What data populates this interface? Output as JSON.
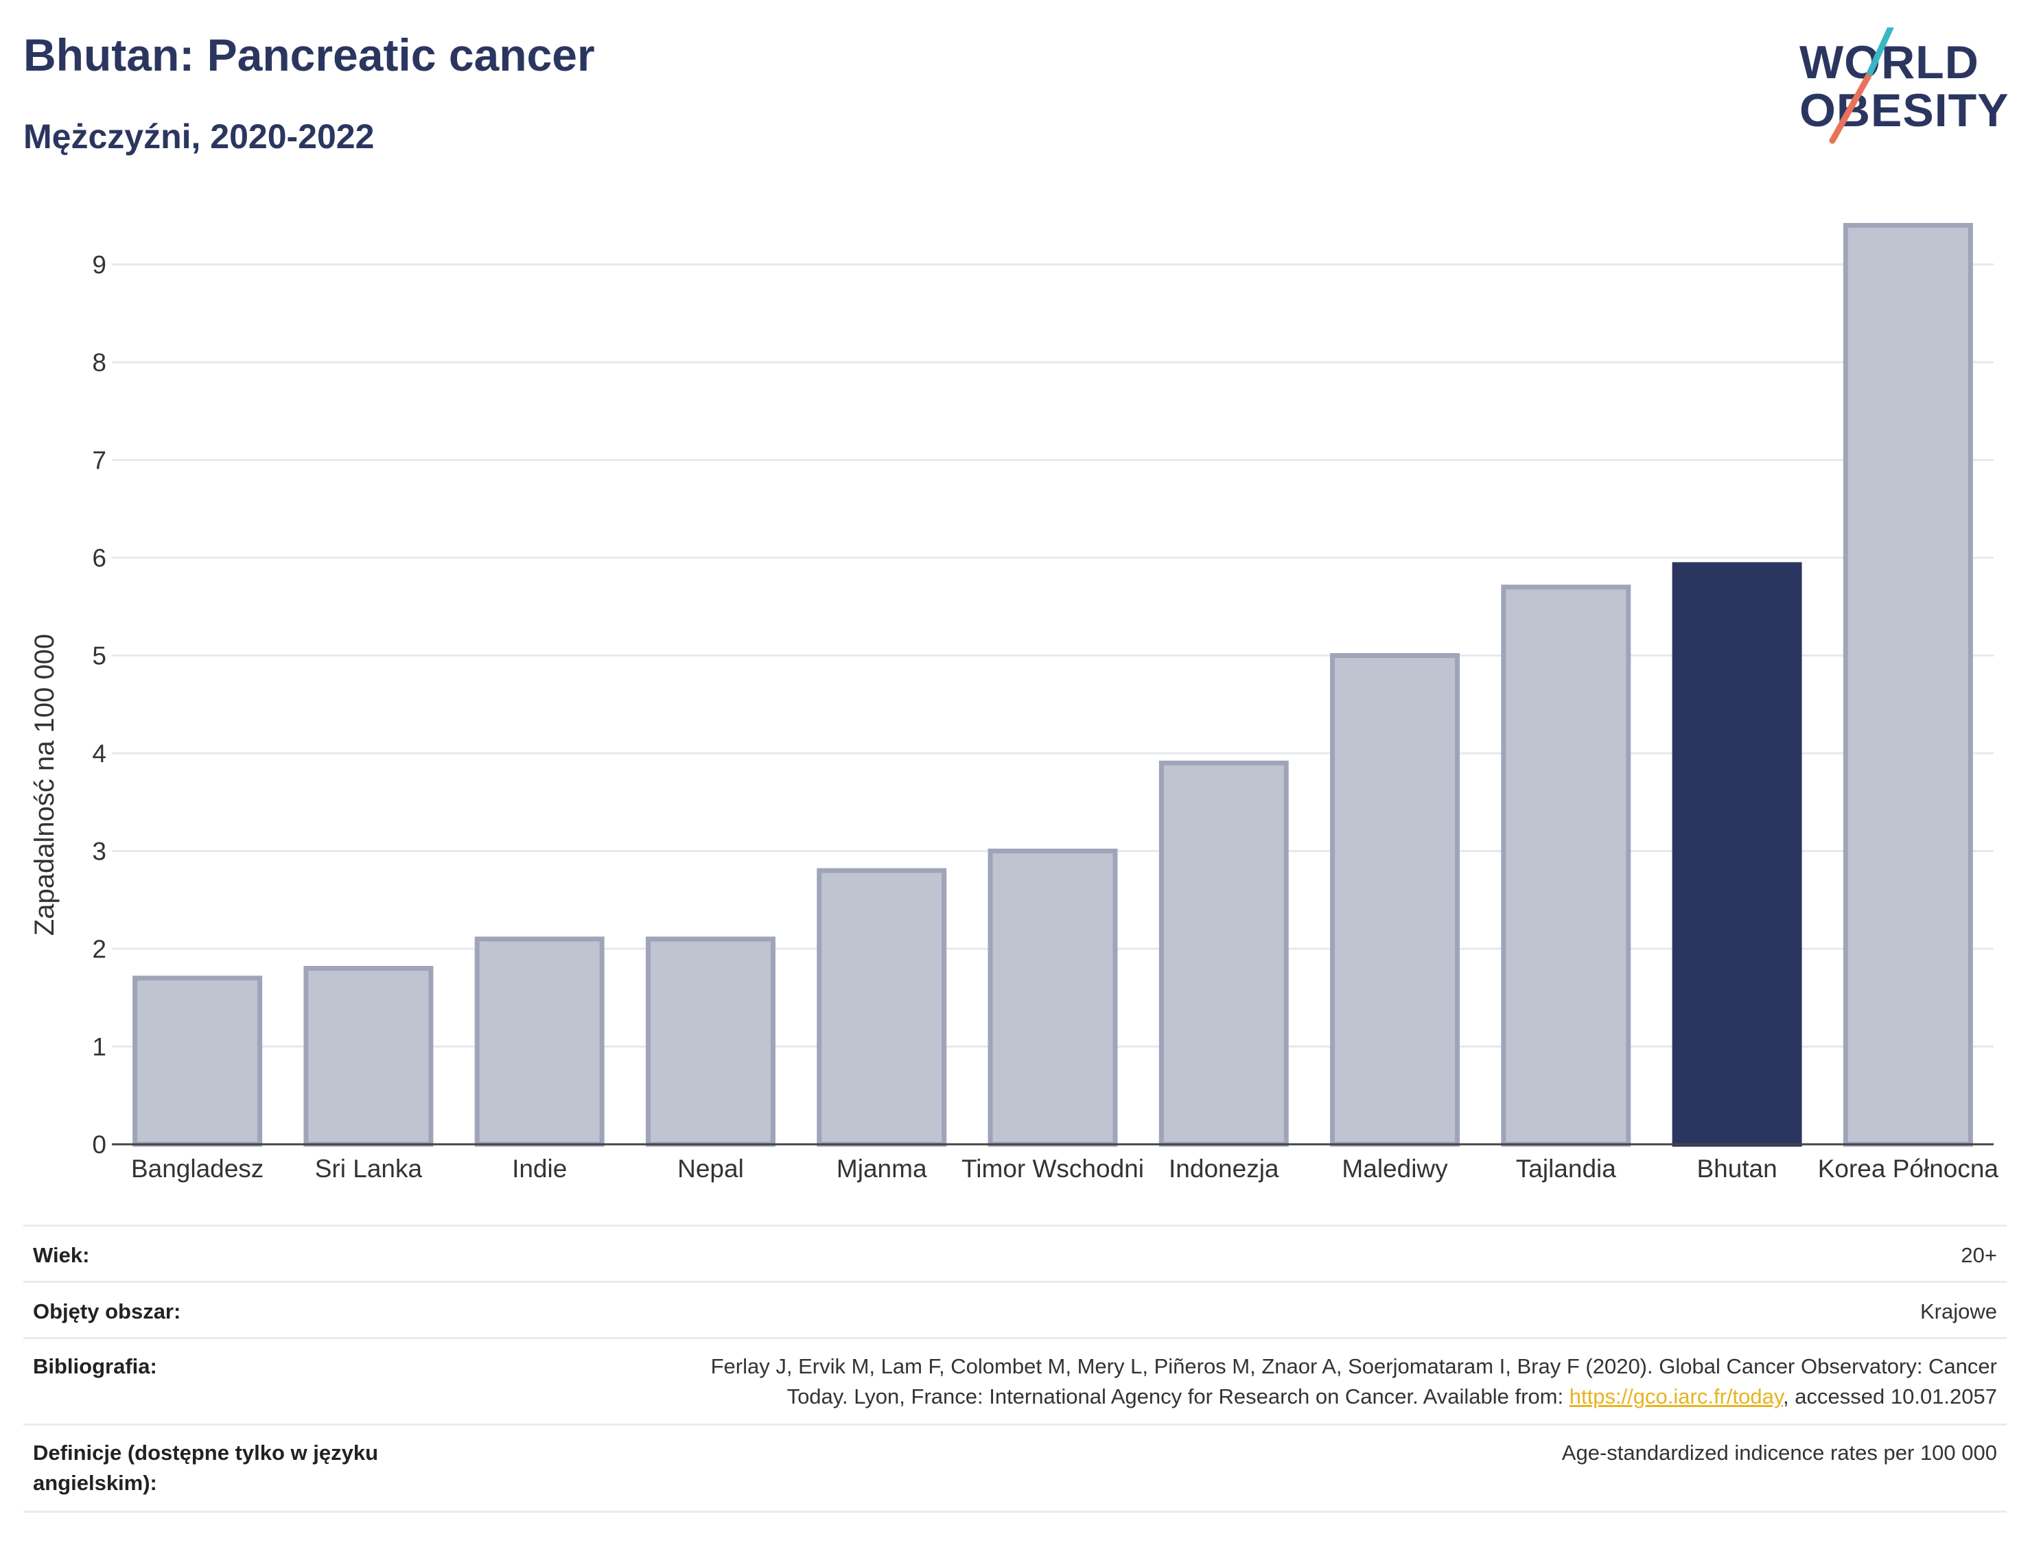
{
  "header": {
    "title": "Bhutan: Pancreatic cancer",
    "subtitle": "Mężczyźni, 2020-2022"
  },
  "logo": {
    "line1": "WORLD",
    "line2": "OBESITY",
    "accent_teal": "#3bb7c4",
    "accent_coral": "#e8735a"
  },
  "chart_data": {
    "type": "bar",
    "categories": [
      "Bangladesz",
      "Sri Lanka",
      "Indie",
      "Nepal",
      "Mjanma",
      "Timor Wschodni",
      "Indonezja",
      "Malediwy",
      "Tajlandia",
      "Bhutan",
      "Korea Północna"
    ],
    "values": [
      1.7,
      1.8,
      2.1,
      2.1,
      2.8,
      3.0,
      3.9,
      5.0,
      5.7,
      5.93,
      9.4
    ],
    "highlight": "Bhutan",
    "ylabel": "Zapadalność na 100 000",
    "ylim": [
      0,
      9.6
    ],
    "yticks": [
      0,
      1,
      2,
      3,
      4,
      5,
      6,
      7,
      8,
      9
    ],
    "grid": true,
    "colors": {
      "bar": "#c0c3d0",
      "bar_border": "#9fa4ba",
      "highlight": "#2b3660"
    }
  },
  "meta": {
    "age_label": "Wiek:",
    "age_value": "20+",
    "coverage_label": "Objęty obszar:",
    "coverage_value": "Krajowe",
    "bibliography_label": "Bibliografia:",
    "bibliography_line1": "Ferlay J, Ervik M, Lam F, Colombet M, Mery L, Piñeros M, Znaor A, Soerjomataram I, Bray F (2020). Global Cancer Observatory: Cancer",
    "bibliography_line2_prefix": "Today. Lyon, France: International Agency for Research on Cancer. Available from: ",
    "bibliography_link": "https://gco.iarc.fr/today",
    "bibliography_line2_suffix": ", accessed 10.01.2057",
    "definitions_label_line1": "Definicje (dostępne tylko w języku",
    "definitions_label_line2": "angielskim):",
    "definitions_value": "Age-standardized indicence rates per 100 000"
  }
}
